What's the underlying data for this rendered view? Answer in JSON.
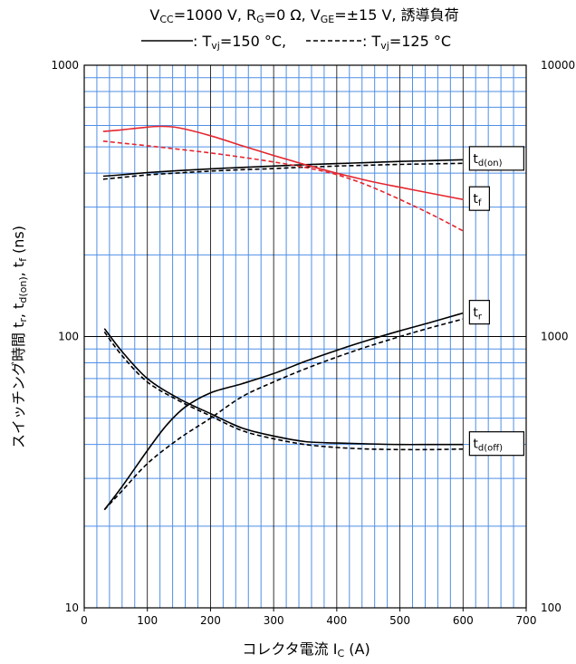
{
  "chart_data": {
    "type": "line",
    "title_lines": [
      "Vₖₖ=1000 V, Rₖ=0 Ω, Vₖₖ=±15 V, 誘導負荷",
      "———: Tᵥⱼ=150 °C, - - - - -: Tᵥⱼ=125 °C"
    ],
    "title_rich": {
      "line1": [
        {
          "t": "V"
        },
        {
          "t": "CC",
          "sub": true
        },
        {
          "t": "=1000  V,  R"
        },
        {
          "t": "G",
          "sub": true
        },
        {
          "t": "=0  Ω,  V"
        },
        {
          "t": "GE",
          "sub": true
        },
        {
          "t": "=±15  V,  誘導負荷"
        }
      ],
      "line2_solid": [
        {
          "t": ": T"
        },
        {
          "t": "vj",
          "sub": true
        },
        {
          "t": "=150 °C, "
        }
      ],
      "line2_dash": [
        {
          "t": ": T"
        },
        {
          "t": "vj",
          "sub": true
        },
        {
          "t": "=125 °C"
        }
      ]
    },
    "xlabel": "コレクタ電流  I",
    "xlabel_sub": "C",
    "xlabel_unit": "(A)",
    "ylabel": "スイッチング時間  t, t, t  (ns)",
    "ylabel_rich": [
      {
        "t": "スイッチング時間    t"
      },
      {
        "t": "r",
        "sub": true
      },
      {
        "t": ", t"
      },
      {
        "t": "d(on)",
        "sub": true
      },
      {
        "t": ", t"
      },
      {
        "t": "f",
        "sub": true
      },
      {
        "t": "    (ns)"
      }
    ],
    "x_ticks": [
      "0",
      "100",
      "200",
      "300",
      "400",
      "500",
      "600",
      "700"
    ],
    "xlim": [
      0,
      700
    ],
    "y_scale": "log",
    "ylim": [
      10,
      1000
    ],
    "y_ticks_left": [
      "10",
      "100",
      "1000"
    ],
    "y_ticks_right": [
      "100",
      "1000",
      "10000"
    ],
    "grid": true,
    "colors": {
      "grid_minor": "#4f8fe6",
      "grid_major": "#000000",
      "tf": "#e6262e",
      "other": "#000000"
    },
    "series": [
      {
        "name": "t_d(on)",
        "label": "t",
        "label_sub": "d(on)",
        "temp": "150",
        "style": "solid",
        "color": "#000000",
        "x": [
          30,
          50,
          100,
          150,
          200,
          250,
          300,
          350,
          400,
          450,
          500,
          550,
          600
        ],
        "y": [
          390,
          393,
          402,
          409,
          415,
          420,
          425,
          430,
          434,
          438,
          442,
          445,
          448
        ]
      },
      {
        "name": "t_d(on)",
        "temp": "125",
        "style": "dashed",
        "color": "#000000",
        "x": [
          30,
          50,
          100,
          150,
          200,
          250,
          300,
          350,
          400,
          450,
          500,
          550,
          600
        ],
        "y": [
          380,
          384,
          394,
          401,
          407,
          412,
          416,
          421,
          425,
          428,
          431,
          433,
          435
        ]
      },
      {
        "name": "t_f",
        "label": "t",
        "label_sub": "f",
        "temp": "150",
        "style": "solid",
        "color": "#e6262e",
        "x": [
          30,
          60,
          90,
          120,
          150,
          200,
          250,
          300,
          350,
          400,
          450,
          500,
          550,
          600
        ],
        "y": [
          570,
          578,
          588,
          595,
          588,
          550,
          505,
          465,
          430,
          400,
          375,
          355,
          337,
          320
        ]
      },
      {
        "name": "t_f",
        "temp": "125",
        "style": "dashed",
        "color": "#e6262e",
        "x": [
          30,
          100,
          150,
          200,
          250,
          300,
          350,
          400,
          450,
          500,
          550,
          600
        ],
        "y": [
          525,
          505,
          490,
          475,
          458,
          440,
          420,
          395,
          360,
          320,
          282,
          245
        ]
      },
      {
        "name": "t_r",
        "label": "t",
        "label_sub": "r",
        "temp": "150",
        "style": "solid",
        "color": "#000000",
        "x": [
          32,
          60,
          100,
          130,
          160,
          200,
          250,
          300,
          350,
          400,
          450,
          500,
          550,
          600
        ],
        "y": [
          23,
          28,
          38,
          47,
          55,
          62,
          67,
          73,
          81,
          89,
          97,
          105,
          113,
          122
        ]
      },
      {
        "name": "t_r",
        "temp": "125",
        "style": "dashed",
        "color": "#000000",
        "x": [
          32,
          60,
          100,
          150,
          200,
          250,
          300,
          350,
          400,
          450,
          500,
          550,
          600
        ],
        "y": [
          23,
          27,
          34,
          42,
          50,
          60,
          68,
          76,
          84,
          92,
          100,
          108,
          116
        ]
      },
      {
        "name": "t_d(off)",
        "label": "t",
        "label_sub": "d(off)",
        "temp": "150",
        "style": "solid",
        "color": "#000000",
        "x": [
          32,
          60,
          100,
          150,
          200,
          250,
          300,
          350,
          400,
          450,
          500,
          550,
          600
        ],
        "y": [
          107,
          88,
          70,
          59,
          52,
          46,
          43,
          41,
          40.5,
          40.2,
          40,
          40,
          40
        ]
      },
      {
        "name": "t_d(off)",
        "temp": "125",
        "style": "dashed",
        "color": "#000000",
        "x": [
          32,
          60,
          100,
          150,
          200,
          250,
          300,
          350,
          400,
          450,
          500,
          550,
          600
        ],
        "y": [
          104,
          85,
          68,
          58,
          51,
          45,
          42,
          40,
          39,
          38.5,
          38.3,
          38.3,
          38.5
        ]
      }
    ],
    "label_boxes": [
      {
        "series": "t_d(on)",
        "label": "t",
        "label_sub": "d(on)",
        "x": 603,
        "y": 450
      },
      {
        "series": "t_f",
        "label": "t",
        "label_sub": "f",
        "x": 603,
        "y": 320
      },
      {
        "series": "t_r",
        "label": "t",
        "label_sub": "r",
        "x": 603,
        "y": 122
      },
      {
        "series": "t_d(off)",
        "label": "t",
        "label_sub": "d(off)",
        "x": 603,
        "y": 40
      }
    ]
  }
}
